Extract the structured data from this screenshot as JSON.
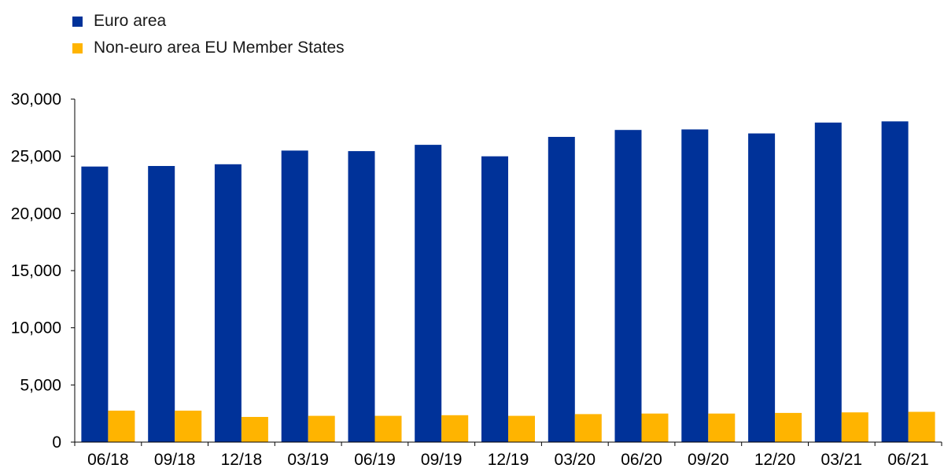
{
  "colors": {
    "euro_area": "#003299",
    "non_euro": "#ffb400",
    "axis": "#000000"
  },
  "legend": [
    {
      "label": "Euro area",
      "color": "#003299"
    },
    {
      "label": "Non-euro area EU Member States",
      "color": "#ffb400"
    }
  ],
  "chart_data": {
    "type": "bar",
    "categories": [
      "06/18",
      "09/18",
      "12/18",
      "03/19",
      "06/19",
      "09/19",
      "12/19",
      "03/20",
      "06/20",
      "09/20",
      "12/20",
      "03/21",
      "06/21"
    ],
    "series": [
      {
        "name": "Euro area",
        "color": "#003299",
        "values": [
          24100,
          24150,
          24300,
          25500,
          25450,
          26000,
          25000,
          26700,
          27300,
          27350,
          27000,
          27950,
          28050
        ]
      },
      {
        "name": "Non-euro area EU Member States",
        "color": "#ffb400",
        "values": [
          2750,
          2750,
          2200,
          2300,
          2300,
          2350,
          2300,
          2450,
          2500,
          2500,
          2550,
          2600,
          2650
        ]
      }
    ],
    "yticks": [
      "0",
      "5,000",
      "10,000",
      "15,000",
      "20,000",
      "25,000",
      "30,000"
    ],
    "ylim": [
      0,
      30000
    ],
    "title": "",
    "xlabel": "",
    "ylabel": "",
    "grid": false,
    "legend_position": "top-left"
  }
}
